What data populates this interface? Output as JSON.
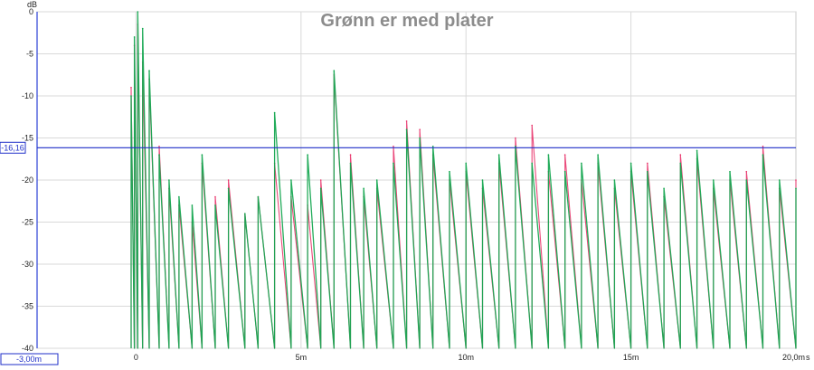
{
  "chart_data": {
    "type": "line",
    "title": "Grønn er med plater",
    "ylabel": "dB",
    "xunit": "s",
    "ylim": [
      -40,
      0
    ],
    "xlim": [
      -0.003,
      0.02
    ],
    "grid": true,
    "x_ticks": [
      {
        "value": 0,
        "label": "0"
      },
      {
        "value": 0.005,
        "label": "5m"
      },
      {
        "value": 0.01,
        "label": "10m"
      },
      {
        "value": 0.015,
        "label": "15m"
      },
      {
        "value": 0.02,
        "label": "20,0m"
      }
    ],
    "y_ticks": [
      {
        "value": 0,
        "label": "0"
      },
      {
        "value": -5,
        "label": "-5"
      },
      {
        "value": -10,
        "label": "-10"
      },
      {
        "value": -15,
        "label": "-15"
      },
      {
        "value": -20,
        "label": "-20"
      },
      {
        "value": -25,
        "label": "-25"
      },
      {
        "value": -30,
        "label": "-30"
      },
      {
        "value": -35,
        "label": "-35"
      },
      {
        "value": -40,
        "label": "-40"
      }
    ],
    "cursor": {
      "y": -16.16,
      "y_label": "-16,16",
      "x_label": "-3,00m"
    },
    "series": [
      {
        "color": "#e8336a",
        "x": [
          -0.00015,
          -5e-05,
          5e-05,
          0.0002,
          0.0004,
          0.0007,
          0.001,
          0.0013,
          0.0017,
          0.002,
          0.0024,
          0.0028,
          0.0033,
          0.0037,
          0.0042,
          0.0047,
          0.0052,
          0.0056,
          0.006,
          0.0065,
          0.0069,
          0.0073,
          0.0078,
          0.0082,
          0.0086,
          0.009,
          0.0095,
          0.01,
          0.0105,
          0.011,
          0.0115,
          0.012,
          0.0125,
          0.013,
          0.0135,
          0.014,
          0.0145,
          0.015,
          0.0155,
          0.016,
          0.0165,
          0.017,
          0.0175,
          0.018,
          0.0185,
          0.019,
          0.0195,
          0.02
        ],
        "values": [
          -9,
          -4,
          -1.5,
          -6,
          -8,
          -16,
          -21,
          -23,
          -25,
          -18,
          -22,
          -20,
          -24,
          -22,
          -18,
          -22,
          -23,
          -20,
          -7.5,
          -17,
          -22,
          -21,
          -16,
          -13,
          -14,
          -17,
          -20,
          -19,
          -21,
          -18,
          -15,
          -13.5,
          -19,
          -17,
          -20,
          -18,
          -21,
          -19,
          -18,
          -22,
          -17,
          -17.5,
          -21,
          -20,
          -19,
          -16,
          -21,
          -20
        ]
      },
      {
        "color": "#17a852",
        "x": [
          -0.00015,
          -5e-05,
          5e-05,
          0.0002,
          0.0004,
          0.0007,
          0.001,
          0.0013,
          0.0017,
          0.002,
          0.0024,
          0.0028,
          0.0033,
          0.0037,
          0.0042,
          0.0047,
          0.0052,
          0.0056,
          0.006,
          0.0065,
          0.0069,
          0.0073,
          0.0078,
          0.0082,
          0.0086,
          0.009,
          0.0095,
          0.01,
          0.0105,
          0.011,
          0.0115,
          0.012,
          0.0125,
          0.013,
          0.0135,
          0.014,
          0.0145,
          0.015,
          0.0155,
          0.016,
          0.0165,
          0.017,
          0.0175,
          0.018,
          0.0185,
          0.019,
          0.0195,
          0.02
        ],
        "values": [
          -10,
          -3,
          0,
          -2,
          -7,
          -17,
          -20,
          -22,
          -23,
          -17,
          -23,
          -21,
          -24,
          -22,
          -12,
          -20,
          -17,
          -21,
          -7,
          -18,
          -21,
          -20,
          -18,
          -14,
          -15,
          -16,
          -19,
          -18,
          -20,
          -17,
          -16,
          -18,
          -17,
          -19,
          -18,
          -17,
          -20,
          -18,
          -19,
          -21,
          -18,
          -16.5,
          -20,
          -19,
          -20,
          -17,
          -20,
          -21
        ]
      }
    ]
  }
}
